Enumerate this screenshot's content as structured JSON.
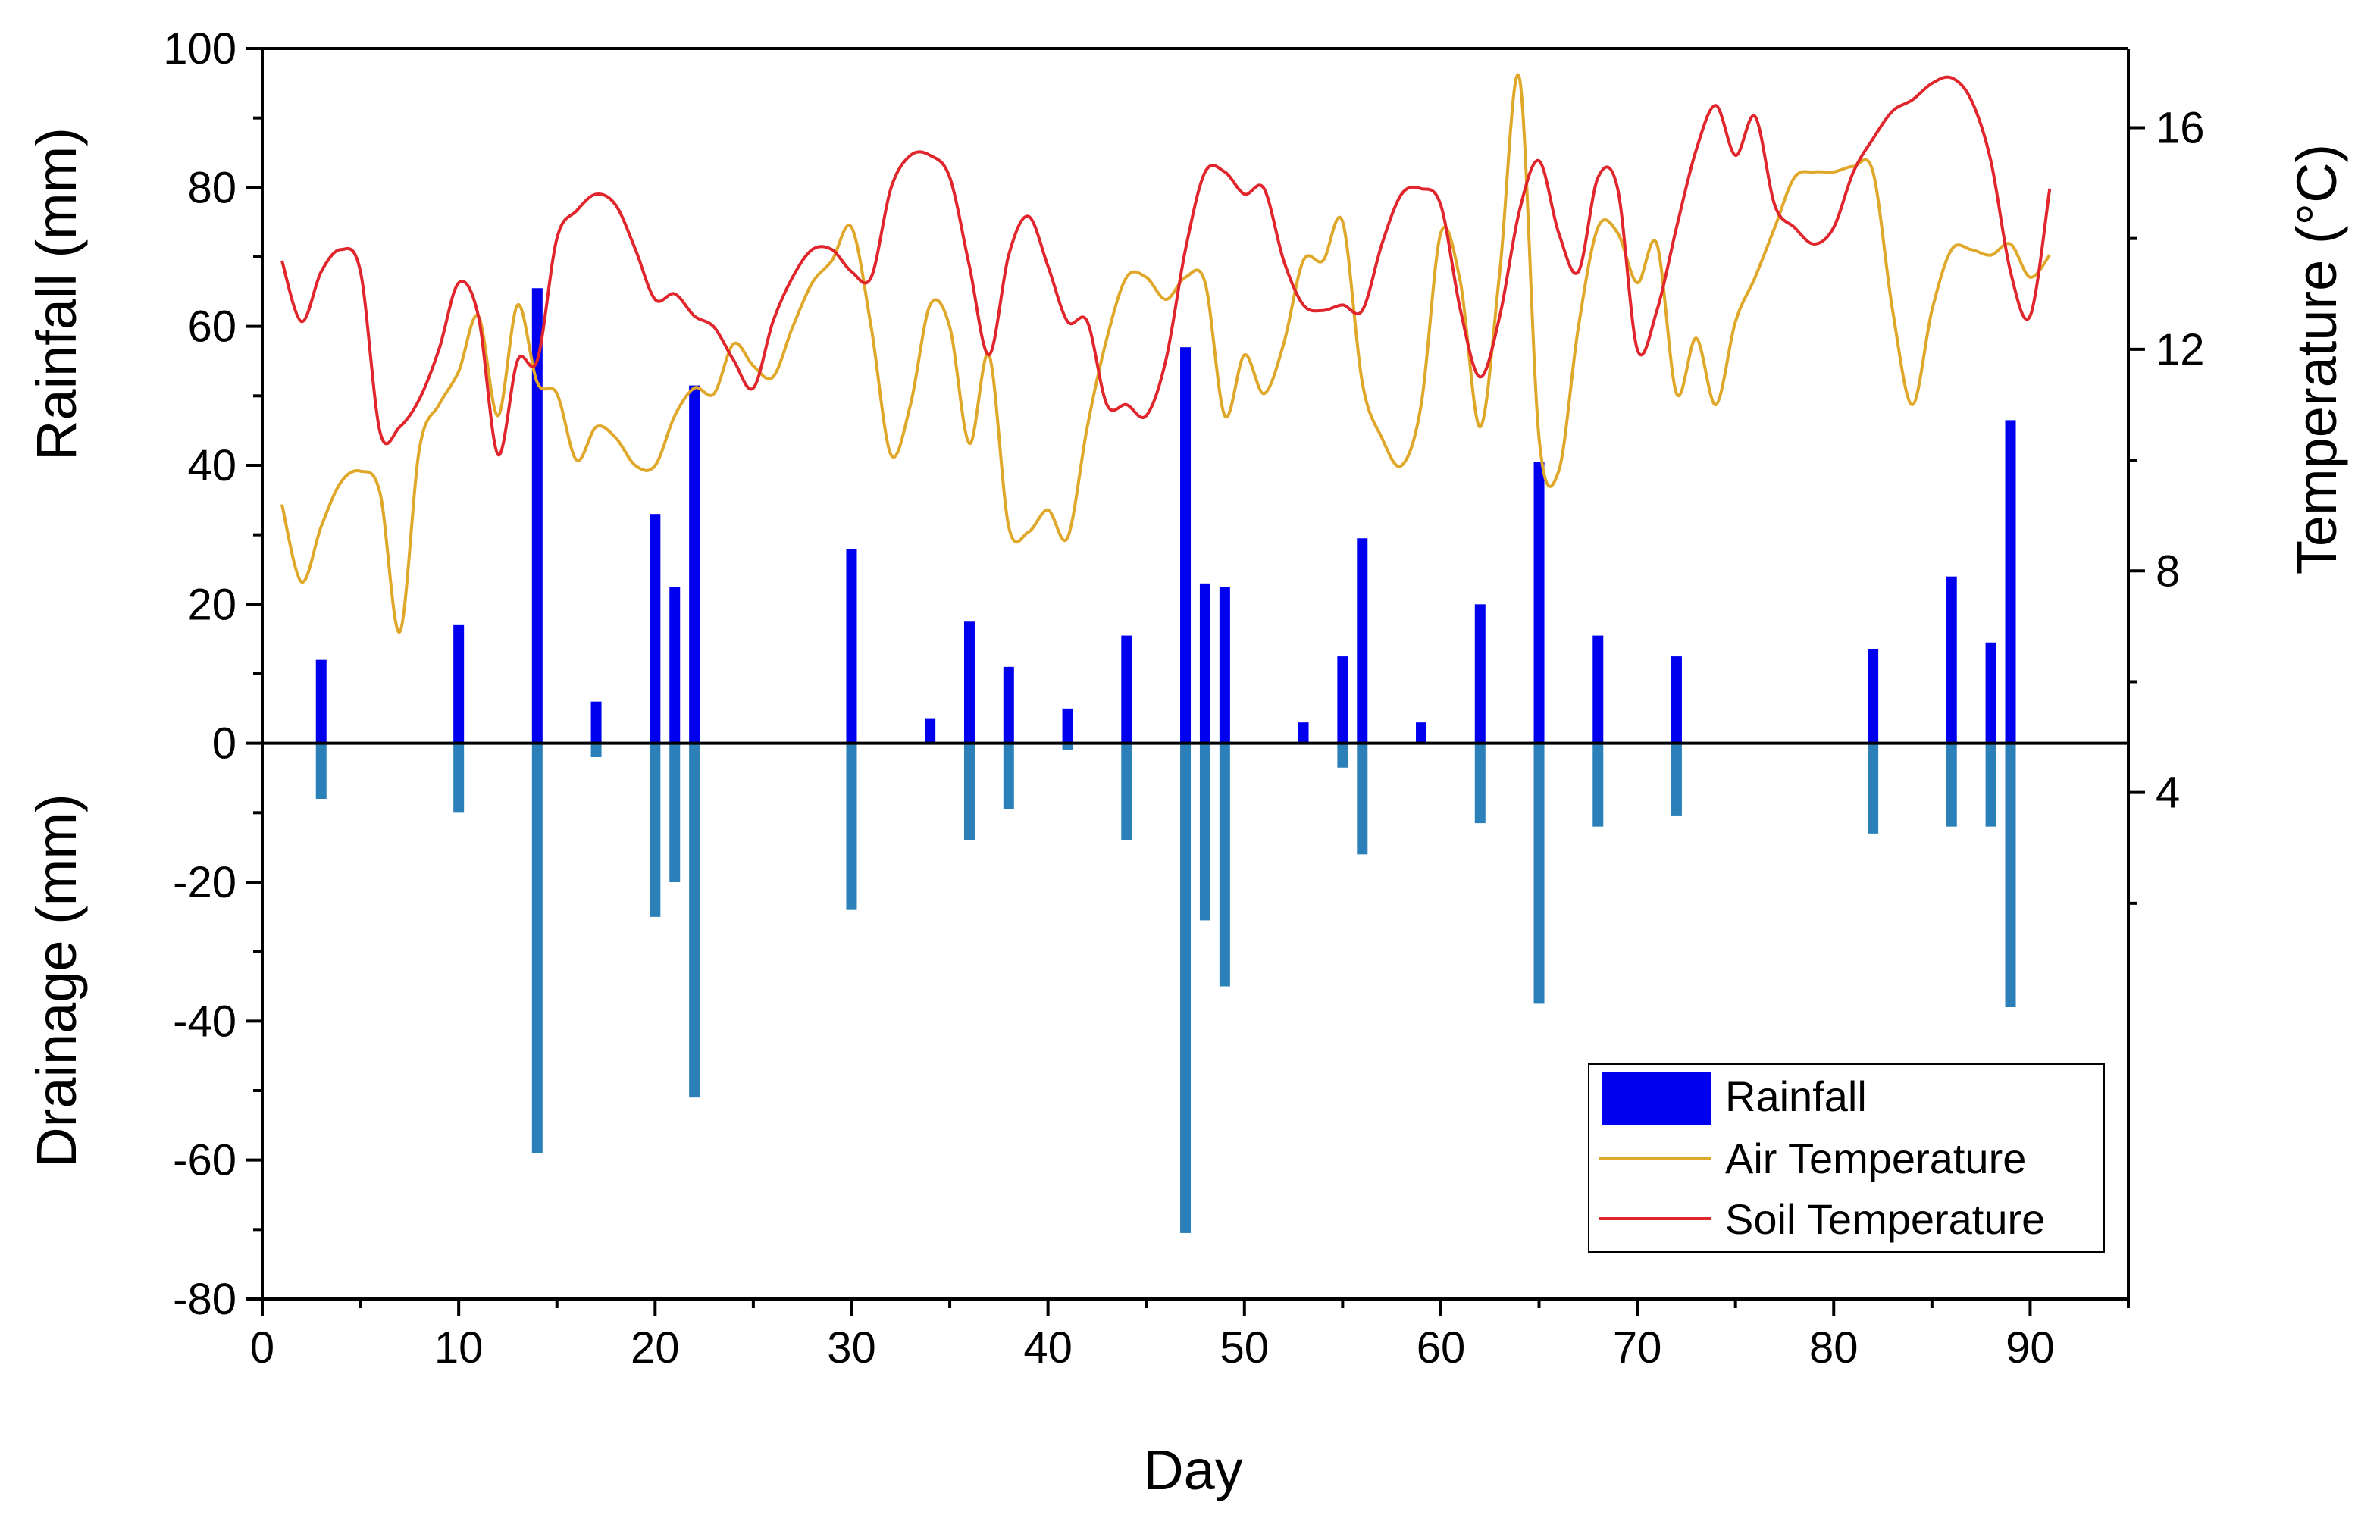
{
  "chart_data": {
    "type": "bar+line",
    "xlabel": "Day",
    "ylabel_left_top": "Rainfall (mm)",
    "ylabel_left_bottom": "Drainage (mm)",
    "ylabel_right": "Temperature (°C)",
    "xlim": [
      0,
      95
    ],
    "ylim_left": [
      -80,
      100
    ],
    "ylim_right": [
      -5.143,
      17.429
    ],
    "x_ticks": [
      0,
      10,
      20,
      30,
      40,
      50,
      60,
      70,
      80,
      90
    ],
    "x_tick_labels": [
      "0",
      "10",
      "20",
      "30",
      "40",
      "50",
      "60",
      "70",
      "80",
      "90"
    ],
    "y_left_ticks": [
      100,
      80,
      60,
      40,
      20,
      0,
      -20,
      -40,
      -60,
      -80
    ],
    "y_left_tick_labels": [
      "100",
      "80",
      "60",
      "40",
      "20",
      "0",
      "-20",
      "-40",
      "-60",
      "-80"
    ],
    "y_right_ticks": [
      4,
      8,
      12,
      16
    ],
    "y_right_tick_labels": [
      "4",
      "8",
      "12",
      "16"
    ],
    "legend_position": "bottom-right",
    "legend": [
      "Rainfall",
      "Air Temperature",
      "Soil Temperature"
    ],
    "colors": {
      "rainfall": "#0000EE",
      "drainage": "#2B80BA",
      "air_temperature": "#E0A82A",
      "soil_temperature": "#E0262C"
    },
    "rainfall": {
      "name": "Rainfall",
      "days": [
        3,
        10,
        14,
        17,
        20,
        21,
        22,
        30,
        34,
        36,
        38,
        41,
        44,
        47,
        48,
        49,
        53,
        55,
        56,
        59,
        62,
        65,
        68,
        72,
        82,
        86,
        88,
        89
      ],
      "values": [
        12,
        17,
        65.5,
        6,
        33,
        22.5,
        51.5,
        28,
        3.5,
        17.5,
        11,
        5,
        15.5,
        57,
        23,
        22.5,
        3,
        12.5,
        29.5,
        3,
        20,
        40.5,
        15.5,
        12.5,
        13.5,
        24,
        14.5,
        46.5
      ]
    },
    "drainage": {
      "name": "Drainage",
      "days": [
        3,
        10,
        14,
        17,
        20,
        21,
        22,
        30,
        36,
        38,
        41,
        44,
        47,
        48,
        49,
        55,
        56,
        62,
        65,
        68,
        72,
        82,
        86,
        88,
        89
      ],
      "values": [
        -8,
        -10,
        -59,
        -2,
        -25,
        -20,
        -51,
        -24,
        -14,
        -9.5,
        -1,
        -14,
        -70.5,
        -25.5,
        -35,
        -3.5,
        -16,
        -11.5,
        -37.5,
        -12,
        -10.5,
        -13,
        -12,
        -12,
        -38
      ]
    },
    "air_temperature": {
      "name": "Air Temperature",
      "days": [
        1,
        2,
        3,
        4,
        5,
        6,
        7,
        8,
        9,
        10,
        11,
        12,
        13,
        14,
        15,
        16,
        17,
        18,
        19,
        20,
        21,
        22,
        23,
        24,
        25,
        26,
        27,
        28,
        29,
        30,
        31,
        32,
        33,
        34,
        35,
        36,
        37,
        38,
        39,
        40,
        41,
        42,
        43,
        44,
        45,
        46,
        47,
        48,
        49,
        50,
        51,
        52,
        53,
        54,
        55,
        56,
        57,
        58,
        59,
        60,
        61,
        62,
        63,
        64,
        65,
        66,
        67,
        68,
        69,
        70,
        71,
        72,
        73,
        74,
        75,
        76,
        77,
        78,
        79,
        80,
        81,
        82,
        83,
        84,
        85,
        86,
        87,
        88,
        89,
        90,
        91
      ],
      "values": [
        9.2,
        7.8,
        8.8,
        9.6,
        9.8,
        9.4,
        6.9,
        10.2,
        11.0,
        11.6,
        12.6,
        10.8,
        12.8,
        11.4,
        11.2,
        10.0,
        10.6,
        10.4,
        9.9,
        9.9,
        10.8,
        11.3,
        11.2,
        12.1,
        11.7,
        11.5,
        12.4,
        13.2,
        13.6,
        14.2,
        12.4,
        10.1,
        11.0,
        12.8,
        12.4,
        10.3,
        11.9,
        8.8,
        8.7,
        9.1,
        8.6,
        10.6,
        12.2,
        13.3,
        13.3,
        12.9,
        13.3,
        13.2,
        10.8,
        11.9,
        11.2,
        12.1,
        13.6,
        13.6,
        14.3,
        11.4,
        10.4,
        9.9,
        11.0,
        14.1,
        13.2,
        10.6,
        13.4,
        16.9,
        10.4,
        9.8,
        12.4,
        14.2,
        14.1,
        13.2,
        13.9,
        11.2,
        12.2,
        11.0,
        12.5,
        13.3,
        14.2,
        15.1,
        15.2,
        15.2,
        15.3,
        15.2,
        12.7,
        11.0,
        12.7,
        13.8,
        13.8,
        13.7,
        13.9,
        13.3,
        13.7
      ]
    },
    "soil_temperature": {
      "name": "Soil Temperature",
      "days": [
        1,
        2,
        3,
        4,
        5,
        6,
        7,
        8,
        9,
        10,
        11,
        12,
        13,
        14,
        15,
        16,
        17,
        18,
        19,
        20,
        21,
        22,
        23,
        24,
        25,
        26,
        27,
        28,
        29,
        30,
        31,
        32,
        33,
        34,
        35,
        36,
        37,
        38,
        39,
        40,
        41,
        42,
        43,
        44,
        45,
        46,
        47,
        48,
        49,
        50,
        51,
        52,
        53,
        54,
        55,
        56,
        57,
        58,
        59,
        60,
        61,
        62,
        63,
        64,
        65,
        66,
        67,
        68,
        69,
        70,
        71,
        72,
        73,
        74,
        75,
        76,
        77,
        78,
        79,
        80,
        81,
        82,
        83,
        84,
        85,
        86,
        87,
        88,
        89,
        90,
        91
      ],
      "values": [
        13.6,
        12.5,
        13.4,
        13.8,
        13.4,
        10.5,
        10.6,
        11.1,
        12.0,
        13.2,
        12.6,
        10.1,
        11.8,
        11.8,
        14.0,
        14.5,
        14.8,
        14.6,
        13.8,
        12.9,
        13.0,
        12.6,
        12.4,
        11.8,
        11.3,
        12.5,
        13.3,
        13.8,
        13.8,
        13.4,
        13.3,
        14.9,
        15.5,
        15.5,
        15.1,
        13.5,
        11.9,
        13.7,
        14.4,
        13.5,
        12.5,
        12.5,
        11.0,
        11.0,
        10.8,
        11.8,
        13.8,
        15.2,
        15.2,
        14.8,
        14.9,
        13.6,
        12.8,
        12.7,
        12.8,
        12.7,
        13.9,
        14.8,
        14.9,
        14.6,
        12.7,
        11.5,
        12.6,
        14.5,
        15.4,
        14.1,
        13.4,
        15.1,
        14.9,
        12.0,
        12.7,
        14.2,
        15.6,
        16.4,
        15.5,
        16.2,
        14.6,
        14.2,
        13.9,
        14.2,
        15.2,
        15.8,
        16.3,
        16.5,
        16.8,
        16.9,
        16.5,
        15.4,
        13.4,
        12.6,
        14.9
      ]
    }
  }
}
